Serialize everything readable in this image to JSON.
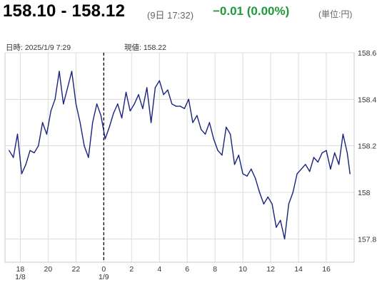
{
  "header": {
    "price_range": "158.10 - 158.12",
    "date_time": "(9日 17:32)",
    "change": "−0.01  (0.00%)",
    "unit": "(単位:円)",
    "change_color": "#1f9a3c"
  },
  "chart_meta": {
    "datetime_label": "日時: 2025/1/9  7:29",
    "value_label": "現値: 158.22"
  },
  "chart_data": {
    "type": "line",
    "line_color": "#1a237e",
    "grid": true,
    "ylim": [
      157.7,
      158.6
    ],
    "y_ticks": [
      157.8,
      158.0,
      158.2,
      158.4,
      158.6
    ],
    "y_tick_labels": [
      "157.8",
      "158",
      "158.2",
      "158.4",
      "158.6"
    ],
    "x_ticks": [
      {
        "label": "18",
        "sub": "1/8"
      },
      {
        "label": "20",
        "sub": ""
      },
      {
        "label": "22",
        "sub": ""
      },
      {
        "label": "0",
        "sub": "1/9"
      },
      {
        "label": "2",
        "sub": ""
      },
      {
        "label": "4",
        "sub": ""
      },
      {
        "label": "6",
        "sub": ""
      },
      {
        "label": "8",
        "sub": ""
      },
      {
        "label": "10",
        "sub": ""
      },
      {
        "label": "12",
        "sub": ""
      },
      {
        "label": "14",
        "sub": ""
      },
      {
        "label": "16",
        "sub": ""
      }
    ],
    "cursor_time": "0:00",
    "series": [
      {
        "x": [
          -6.8,
          -6.5,
          -6.2,
          -5.9,
          -5.6,
          -5.3,
          -5.0,
          -4.7,
          -4.4,
          -4.1,
          -3.8,
          -3.5,
          -3.2,
          -2.9,
          -2.6,
          -2.3,
          -2.0,
          -1.7,
          -1.4,
          -1.1,
          -0.8,
          -0.5,
          -0.2,
          0.1,
          0.4,
          0.7,
          1.0,
          1.3,
          1.6,
          1.9,
          2.2,
          2.5,
          2.8,
          3.1,
          3.4,
          3.7,
          4.0,
          4.3,
          4.6,
          4.9,
          5.2,
          5.5,
          5.8,
          6.1,
          6.4,
          6.7,
          7.0,
          7.3,
          7.6,
          7.9,
          8.2,
          8.5,
          8.8,
          9.1,
          9.4,
          9.7,
          10.0,
          10.3,
          10.6,
          10.9,
          11.2,
          11.5,
          11.8,
          12.1,
          12.4,
          12.7,
          13.0,
          13.3,
          13.6,
          13.9,
          14.2,
          14.5,
          14.8,
          15.1,
          15.4,
          15.7,
          16.0,
          16.3,
          16.6,
          16.9,
          17.2,
          17.5,
          17.7
        ],
        "y": [
          158.18,
          158.15,
          158.25,
          158.08,
          158.12,
          158.18,
          158.17,
          158.2,
          158.3,
          158.25,
          158.35,
          158.4,
          158.52,
          158.38,
          158.45,
          158.52,
          158.38,
          158.3,
          158.2,
          158.15,
          158.3,
          158.38,
          158.33,
          158.23,
          158.28,
          158.34,
          158.38,
          158.32,
          158.43,
          158.35,
          158.38,
          158.42,
          158.36,
          158.45,
          158.3,
          158.45,
          158.48,
          158.42,
          158.44,
          158.38,
          158.37,
          158.37,
          158.36,
          158.4,
          158.3,
          158.33,
          158.27,
          158.25,
          158.3,
          158.23,
          158.18,
          158.16,
          158.28,
          158.25,
          158.12,
          158.16,
          158.08,
          158.07,
          158.1,
          158.06,
          158.0,
          157.95,
          157.98,
          157.95,
          157.85,
          157.88,
          157.8,
          157.95,
          158.0,
          158.08,
          158.1,
          158.12,
          158.09,
          158.15,
          158.13,
          158.17,
          158.18,
          158.1,
          158.17,
          158.12,
          158.25,
          158.17,
          158.08
        ]
      }
    ]
  }
}
